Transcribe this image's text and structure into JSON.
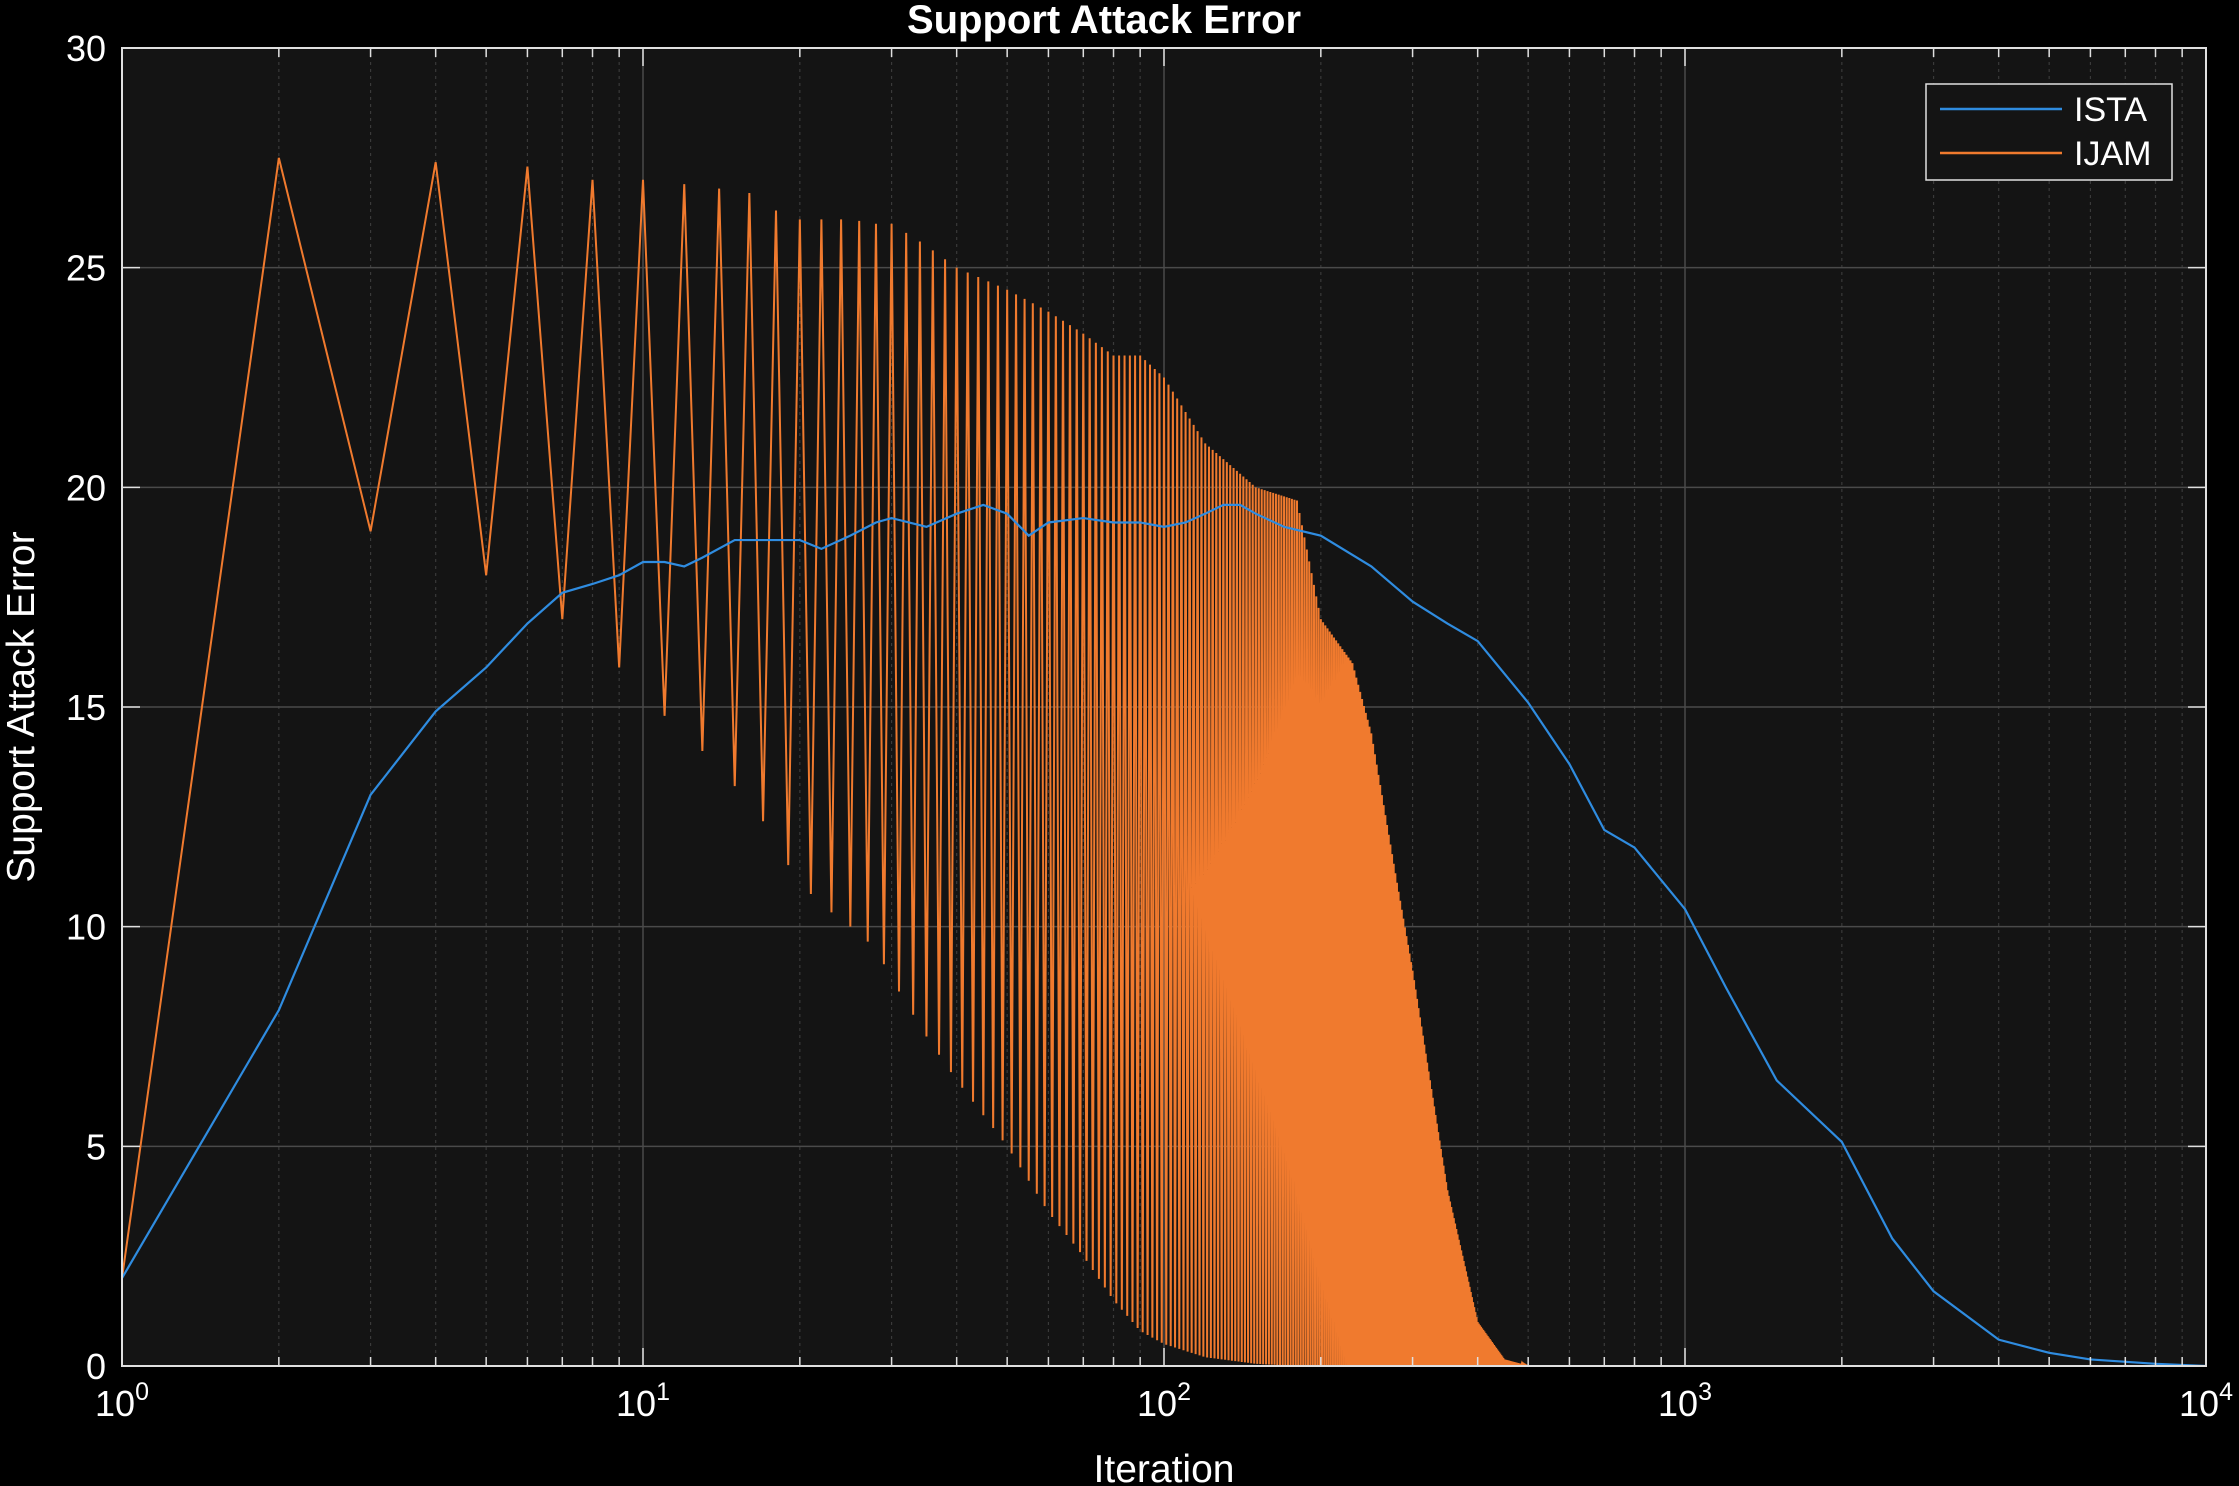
{
  "chart_data": {
    "type": "line",
    "title": "Support Attack Error",
    "xlabel": "Iteration",
    "ylabel": "Support Attack Error",
    "xscale": "log",
    "xlim": [
      1,
      10000
    ],
    "ylim": [
      0,
      30
    ],
    "grid": true,
    "minor_grid": true,
    "legend_position": "top-right",
    "x_ticks": [
      {
        "value": 1,
        "base": "10",
        "exp": "0"
      },
      {
        "value": 10,
        "base": "10",
        "exp": "1"
      },
      {
        "value": 100,
        "base": "10",
        "exp": "2"
      },
      {
        "value": 1000,
        "base": "10",
        "exp": "3"
      },
      {
        "value": 10000,
        "base": "10",
        "exp": "4"
      }
    ],
    "y_ticks": [
      "0",
      "5",
      "10",
      "15",
      "20",
      "25",
      "30"
    ],
    "background_color": "#141414",
    "figure_color": "#000000",
    "series": [
      {
        "name": "ISTA",
        "color": "#2f8ce0",
        "x": [
          1,
          2,
          3,
          4,
          5,
          6,
          7,
          8,
          9,
          10,
          11,
          12,
          13,
          15,
          17,
          20,
          22,
          25,
          28,
          30,
          35,
          40,
          45,
          50,
          55,
          60,
          70,
          80,
          90,
          100,
          110,
          120,
          130,
          140,
          150,
          170,
          200,
          250,
          300,
          350,
          400,
          500,
          600,
          700,
          800,
          1000,
          1200,
          1500,
          2000,
          2500,
          3000,
          4000,
          5000,
          6000,
          8000,
          10000
        ],
        "y": [
          2.0,
          8.1,
          13.0,
          14.9,
          15.9,
          16.9,
          17.6,
          17.8,
          18.0,
          18.3,
          18.3,
          18.2,
          18.4,
          18.8,
          18.8,
          18.8,
          18.6,
          18.9,
          19.2,
          19.3,
          19.1,
          19.4,
          19.6,
          19.4,
          18.9,
          19.2,
          19.3,
          19.2,
          19.2,
          19.1,
          19.2,
          19.4,
          19.6,
          19.6,
          19.4,
          19.1,
          18.9,
          18.2,
          17.4,
          16.9,
          16.5,
          15.1,
          13.7,
          12.2,
          11.8,
          10.4,
          8.6,
          6.5,
          5.1,
          2.9,
          1.7,
          0.6,
          0.3,
          0.15,
          0.05,
          0.0
        ]
      },
      {
        "name": "IJAM",
        "color": "#f07a2e",
        "x": [
          1,
          2,
          3,
          4,
          5,
          6,
          7,
          8,
          9,
          10,
          11,
          12,
          13,
          14,
          15,
          16,
          17,
          18,
          19,
          20,
          22,
          25,
          28,
          30,
          35,
          40,
          50,
          60,
          70,
          80,
          90,
          100,
          120,
          150,
          180,
          200,
          230,
          250,
          280,
          300,
          350,
          400,
          450,
          500,
          10000
        ],
        "upper": [
          2.0,
          27.5,
          19.0,
          27.4,
          18.0,
          27.3,
          17.0,
          27.0,
          15.9,
          27.0,
          26.9,
          26.9,
          26.8,
          26.8,
          26.8,
          26.7,
          26.5,
          26.3,
          26.2,
          26.1,
          26.1,
          26.1,
          26.0,
          26.0,
          25.5,
          25.0,
          24.5,
          24.0,
          23.5,
          23.0,
          23.0,
          22.5,
          21.0,
          20.0,
          19.7,
          17.0,
          16.0,
          14.4,
          11.0,
          9.0,
          4.0,
          1.0,
          0.15,
          0.0,
          0.0
        ],
        "lower": [
          2.0,
          27.5,
          19.0,
          27.4,
          18.0,
          27.3,
          17.0,
          27.0,
          15.9,
          27.0,
          14.8,
          14.8,
          14.0,
          13.7,
          13.2,
          12.6,
          12.4,
          11.8,
          11.4,
          11.0,
          10.5,
          10.0,
          9.5,
          8.8,
          7.5,
          6.5,
          5.0,
          3.5,
          2.5,
          1.5,
          0.8,
          0.5,
          0.2,
          0.05,
          0.0,
          0.0,
          0.0,
          0.0,
          0.0,
          0.0,
          0.0,
          0.0,
          0.0,
          0.0,
          0.0
        ],
        "oscillation_zones": [
          {
            "x_start": 1,
            "x_end": 10,
            "style": "distinct peaks and troughs"
          },
          {
            "x_start": 10,
            "x_end": 450,
            "style": "dense alternating between upper and lower envelope every iteration"
          }
        ]
      }
    ]
  }
}
